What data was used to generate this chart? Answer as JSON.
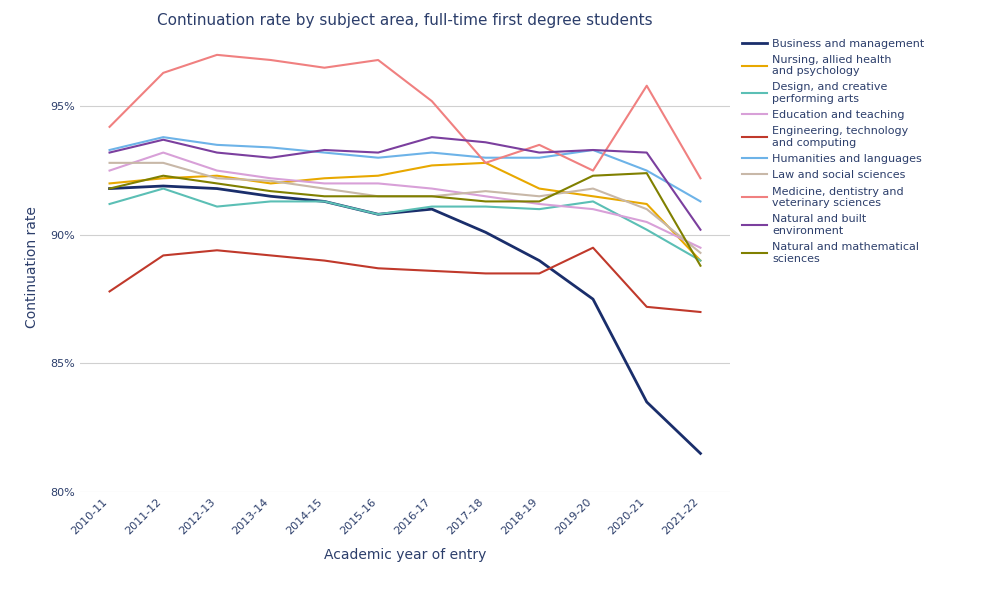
{
  "title": "Continuation rate by subject area, full-time first degree students",
  "xlabel": "Academic year of entry",
  "ylabel": "Continuation rate",
  "years": [
    "2010-11",
    "2011-12",
    "2012-13",
    "2013-14",
    "2014-15",
    "2015-16",
    "2016-17",
    "2017-18",
    "2018-19",
    "2019-20",
    "2020-21",
    "2021-22"
  ],
  "series": [
    {
      "label": "Business and management",
      "color": "#1a2e6b",
      "linewidth": 2.0,
      "values": [
        91.8,
        91.9,
        91.8,
        91.5,
        91.3,
        90.8,
        91.0,
        90.1,
        89.0,
        87.5,
        83.5,
        81.5
      ]
    },
    {
      "label": "Nursing, allied health\nand psychology",
      "color": "#e8a800",
      "linewidth": 1.5,
      "values": [
        92.0,
        92.2,
        92.3,
        92.0,
        92.2,
        92.3,
        92.7,
        92.8,
        91.8,
        91.5,
        91.2,
        89.0
      ]
    },
    {
      "label": "Design, and creative\nperforming arts",
      "color": "#5bbfb5",
      "linewidth": 1.5,
      "values": [
        91.2,
        91.8,
        91.1,
        91.3,
        91.3,
        90.8,
        91.1,
        91.1,
        91.0,
        91.3,
        90.2,
        89.0
      ]
    },
    {
      "label": "Education and teaching",
      "color": "#d8a0d8",
      "linewidth": 1.5,
      "values": [
        92.5,
        93.2,
        92.5,
        92.2,
        92.0,
        92.0,
        91.8,
        91.5,
        91.2,
        91.0,
        90.5,
        89.5
      ]
    },
    {
      "label": "Engineering, technology\nand computing",
      "color": "#c0392b",
      "linewidth": 1.5,
      "values": [
        87.8,
        89.2,
        89.4,
        89.2,
        89.0,
        88.7,
        88.6,
        88.5,
        88.5,
        89.5,
        87.2,
        87.0
      ]
    },
    {
      "label": "Humanities and languages",
      "color": "#6db3e8",
      "linewidth": 1.5,
      "values": [
        93.3,
        93.8,
        93.5,
        93.4,
        93.2,
        93.0,
        93.2,
        93.0,
        93.0,
        93.3,
        92.5,
        91.3
      ]
    },
    {
      "label": "Law and social sciences",
      "color": "#c8b8a8",
      "linewidth": 1.5,
      "values": [
        92.8,
        92.8,
        92.2,
        92.1,
        91.8,
        91.5,
        91.5,
        91.7,
        91.5,
        91.8,
        91.0,
        89.3
      ]
    },
    {
      "label": "Medicine, dentistry and\nveterinary sciences",
      "color": "#f08080",
      "linewidth": 1.5,
      "values": [
        94.2,
        96.3,
        97.0,
        96.8,
        96.5,
        96.8,
        95.2,
        92.8,
        93.5,
        92.5,
        95.8,
        92.2
      ]
    },
    {
      "label": "Natural and built\nenvironment",
      "color": "#7b3f9e",
      "linewidth": 1.5,
      "values": [
        93.2,
        93.7,
        93.2,
        93.0,
        93.3,
        93.2,
        93.8,
        93.6,
        93.2,
        93.3,
        93.2,
        90.2
      ]
    },
    {
      "label": "Natural and mathematical\nsciences",
      "color": "#808000",
      "linewidth": 1.5,
      "values": [
        91.8,
        92.3,
        92.0,
        91.7,
        91.5,
        91.5,
        91.5,
        91.3,
        91.3,
        92.3,
        92.4,
        88.8
      ]
    }
  ],
  "ylim": [
    80.0,
    97.5
  ],
  "yticks": [
    80,
    85,
    90,
    95
  ],
  "figsize": [
    10,
    6
  ],
  "dpi": 100,
  "background_color": "#ffffff",
  "title_color": "#2c3e6b",
  "axis_label_color": "#2c3e6b",
  "tick_color": "#2c3e6b",
  "grid_color": "#d0d0d0"
}
